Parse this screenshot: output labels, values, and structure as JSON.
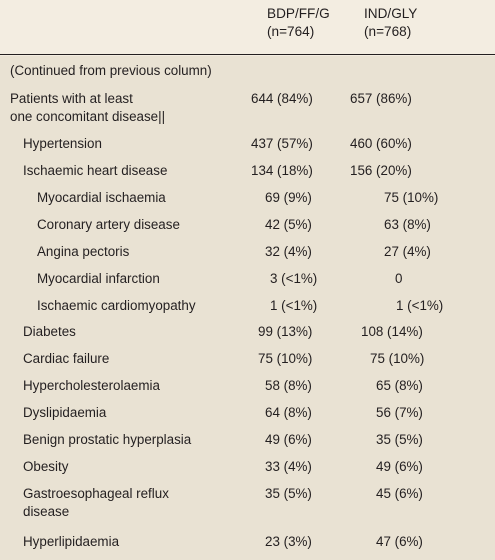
{
  "header": {
    "col1_line1": "BDP/FF/G",
    "col1_line2": "(n=764)",
    "col2_line1": "IND/GLY",
    "col2_line2": "(n=768)"
  },
  "continued": "(Continued from previous column)",
  "rows": [
    {
      "l1": "Patients with at least",
      "l2": "one concomitant disease||",
      "v1": "644 (84%)",
      "v2": "657 (86%)"
    },
    {
      "l1": "Hypertension",
      "v1": "437 (57%)",
      "v2": "460 (60%)"
    },
    {
      "l1": "Ischaemic heart disease",
      "v1": "134 (18%)",
      "v2": "156 (20%)"
    },
    {
      "l1": "Myocardial ischaemia",
      "v1": "69 (9%)",
      "v2": "75 (10%)"
    },
    {
      "l1": "Coronary artery disease",
      "v1": "42 (5%)",
      "v2": "63 (8%)"
    },
    {
      "l1": "Angina pectoris",
      "v1": "32 (4%)",
      "v2": "27 (4%)"
    },
    {
      "l1": "Myocardial infarction",
      "v1": "3 (<1%)",
      "v2": "0"
    },
    {
      "l1": "Ischaemic cardiomyopathy",
      "v1": "1 (<1%)",
      "v2": "1 (<1%)"
    },
    {
      "l1": "Diabetes",
      "v1": "99 (13%)",
      "v2": "108 (14%)"
    },
    {
      "l1": "Cardiac failure",
      "v1": "75 (10%)",
      "v2": "75 (10%)"
    },
    {
      "l1": "Hypercholesterolaemia",
      "v1": "58 (8%)",
      "v2": "65 (8%)"
    },
    {
      "l1": "Dyslipidaemia",
      "v1": "64 (8%)",
      "v2": "56 (7%)"
    },
    {
      "l1": "Benign prostatic hyperplasia",
      "v1": "49 (6%)",
      "v2": "35 (5%)"
    },
    {
      "l1": "Obesity",
      "v1": "33 (4%)",
      "v2": "49 (6%)"
    },
    {
      "l1": "Gastroesophageal reflux",
      "l2": "disease",
      "v1": "35 (5%)",
      "v2": "45 (6%)"
    },
    {
      "l1": "Hyperlipidaemia",
      "v1": "23 (3%)",
      "v2": "47 (6%)"
    }
  ]
}
